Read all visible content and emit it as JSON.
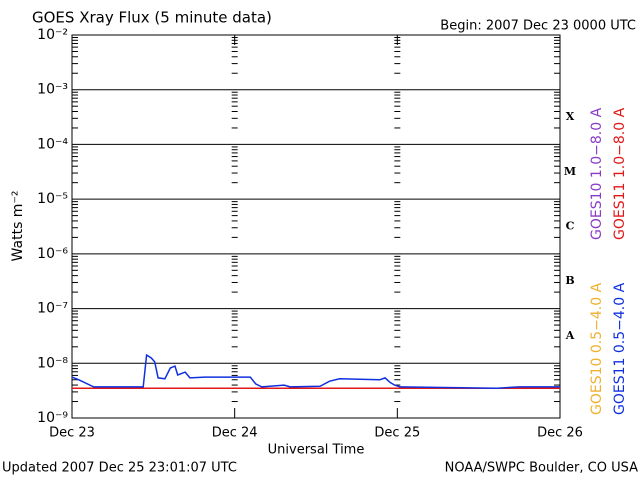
{
  "chart_data": {
    "type": "line",
    "title": "GOES Xray Flux (5 minute data)",
    "subtitle": "Begin:  2007 Dec 23 0000 UTC",
    "y_label": "Watts m⁻²",
    "x_label": "Universal Time",
    "footer_left": "Updated 2007 Dec 25 23:01:07 UTC",
    "footer_right": "NOAA/SWPC Boulder, CO USA",
    "log_scale": true,
    "xlim": [
      0,
      72
    ],
    "xticks": [
      {
        "value": 0,
        "label": "Dec 23"
      },
      {
        "value": 24,
        "label": "Dec 24"
      },
      {
        "value": 48,
        "label": "Dec 25"
      },
      {
        "value": 72,
        "label": "Dec 26"
      }
    ],
    "ylim": [
      1e-09,
      0.01
    ],
    "yticks": [
      {
        "value": 1e-09,
        "label": "10⁻⁹"
      },
      {
        "value": 1e-08,
        "label": "10⁻⁸"
      },
      {
        "value": 1e-07,
        "label": "10⁻⁷"
      },
      {
        "value": 1e-06,
        "label": "10⁻⁶"
      },
      {
        "value": 1e-05,
        "label": "10⁻⁵"
      },
      {
        "value": 0.0001,
        "label": "10⁻⁴"
      },
      {
        "value": 0.001,
        "label": "10⁻³"
      },
      {
        "value": 0.01,
        "label": "10⁻²"
      }
    ],
    "yminor": [
      2e-09,
      3e-09,
      4e-09,
      5e-09,
      6e-09,
      7e-09,
      8e-09,
      9e-09,
      2e-08,
      3e-08,
      4e-08,
      5e-08,
      6e-08,
      7e-08,
      8e-08,
      9e-08,
      2e-07,
      3e-07,
      4e-07,
      5e-07,
      6e-07,
      7e-07,
      8e-07,
      9e-07,
      2e-06,
      3e-06,
      4e-06,
      5e-06,
      6e-06,
      7e-06,
      8e-06,
      9e-06,
      2e-05,
      3e-05,
      4e-05,
      5e-05,
      6e-05,
      7e-05,
      8e-05,
      9e-05,
      0.0002,
      0.0003,
      0.0004,
      0.0005,
      0.0006,
      0.0007,
      0.0008,
      0.0009,
      0.002,
      0.003,
      0.004,
      0.005,
      0.006,
      0.007,
      0.008,
      0.009
    ],
    "flare_classes": [
      {
        "label": "A",
        "value": 1e-08
      },
      {
        "label": "B",
        "value": 1e-07
      },
      {
        "label": "C",
        "value": 1e-06
      },
      {
        "label": "M",
        "value": 1e-05
      },
      {
        "label": "X",
        "value": 0.0001
      }
    ],
    "series": [
      {
        "name": "GOES10 1.0−8.0 A",
        "color": "#8a3cc8",
        "x": [
          62.7,
          66
        ],
        "values": [
          3.5e-09,
          3.5e-09
        ]
      },
      {
        "name": "GOES11 1.0−8.0 A",
        "color": "#e01818",
        "x": [
          0,
          72
        ],
        "values": [
          3.5e-09,
          3.5e-09
        ]
      },
      {
        "name": "GOES10 0.5−4.0 A",
        "color": "#f0b030",
        "x": [],
        "values": []
      },
      {
        "name": "GOES11 0.5−4.0 A",
        "color": "#1030e0",
        "x": [
          0,
          1,
          3.2,
          10.5,
          11,
          11.7,
          12.2,
          12.7,
          13.7,
          14.5,
          15.2,
          15.6,
          16.7,
          17.4,
          19.6,
          26.3,
          27.1,
          28,
          31.3,
          32.2,
          36.6,
          38,
          39.5,
          45.4,
          46.2,
          46.9,
          47.6,
          48.4,
          62.7,
          66,
          72
        ],
        "values": [
          5.6e-09,
          5e-09,
          3.7e-09,
          3.7e-09,
          1.42e-08,
          1.25e-08,
          1.06e-08,
          5.4e-09,
          5.2e-09,
          8.2e-09,
          8.9e-09,
          6.1e-09,
          6.9e-09,
          5.4e-09,
          5.6e-09,
          5.6e-09,
          4.2e-09,
          3.7e-09,
          4e-09,
          3.7e-09,
          3.8e-09,
          4.7e-09,
          5.2e-09,
          5e-09,
          5.4e-09,
          4.5e-09,
          4e-09,
          3.7e-09,
          3.5e-09,
          3.7e-09,
          3.7e-09
        ]
      }
    ]
  }
}
